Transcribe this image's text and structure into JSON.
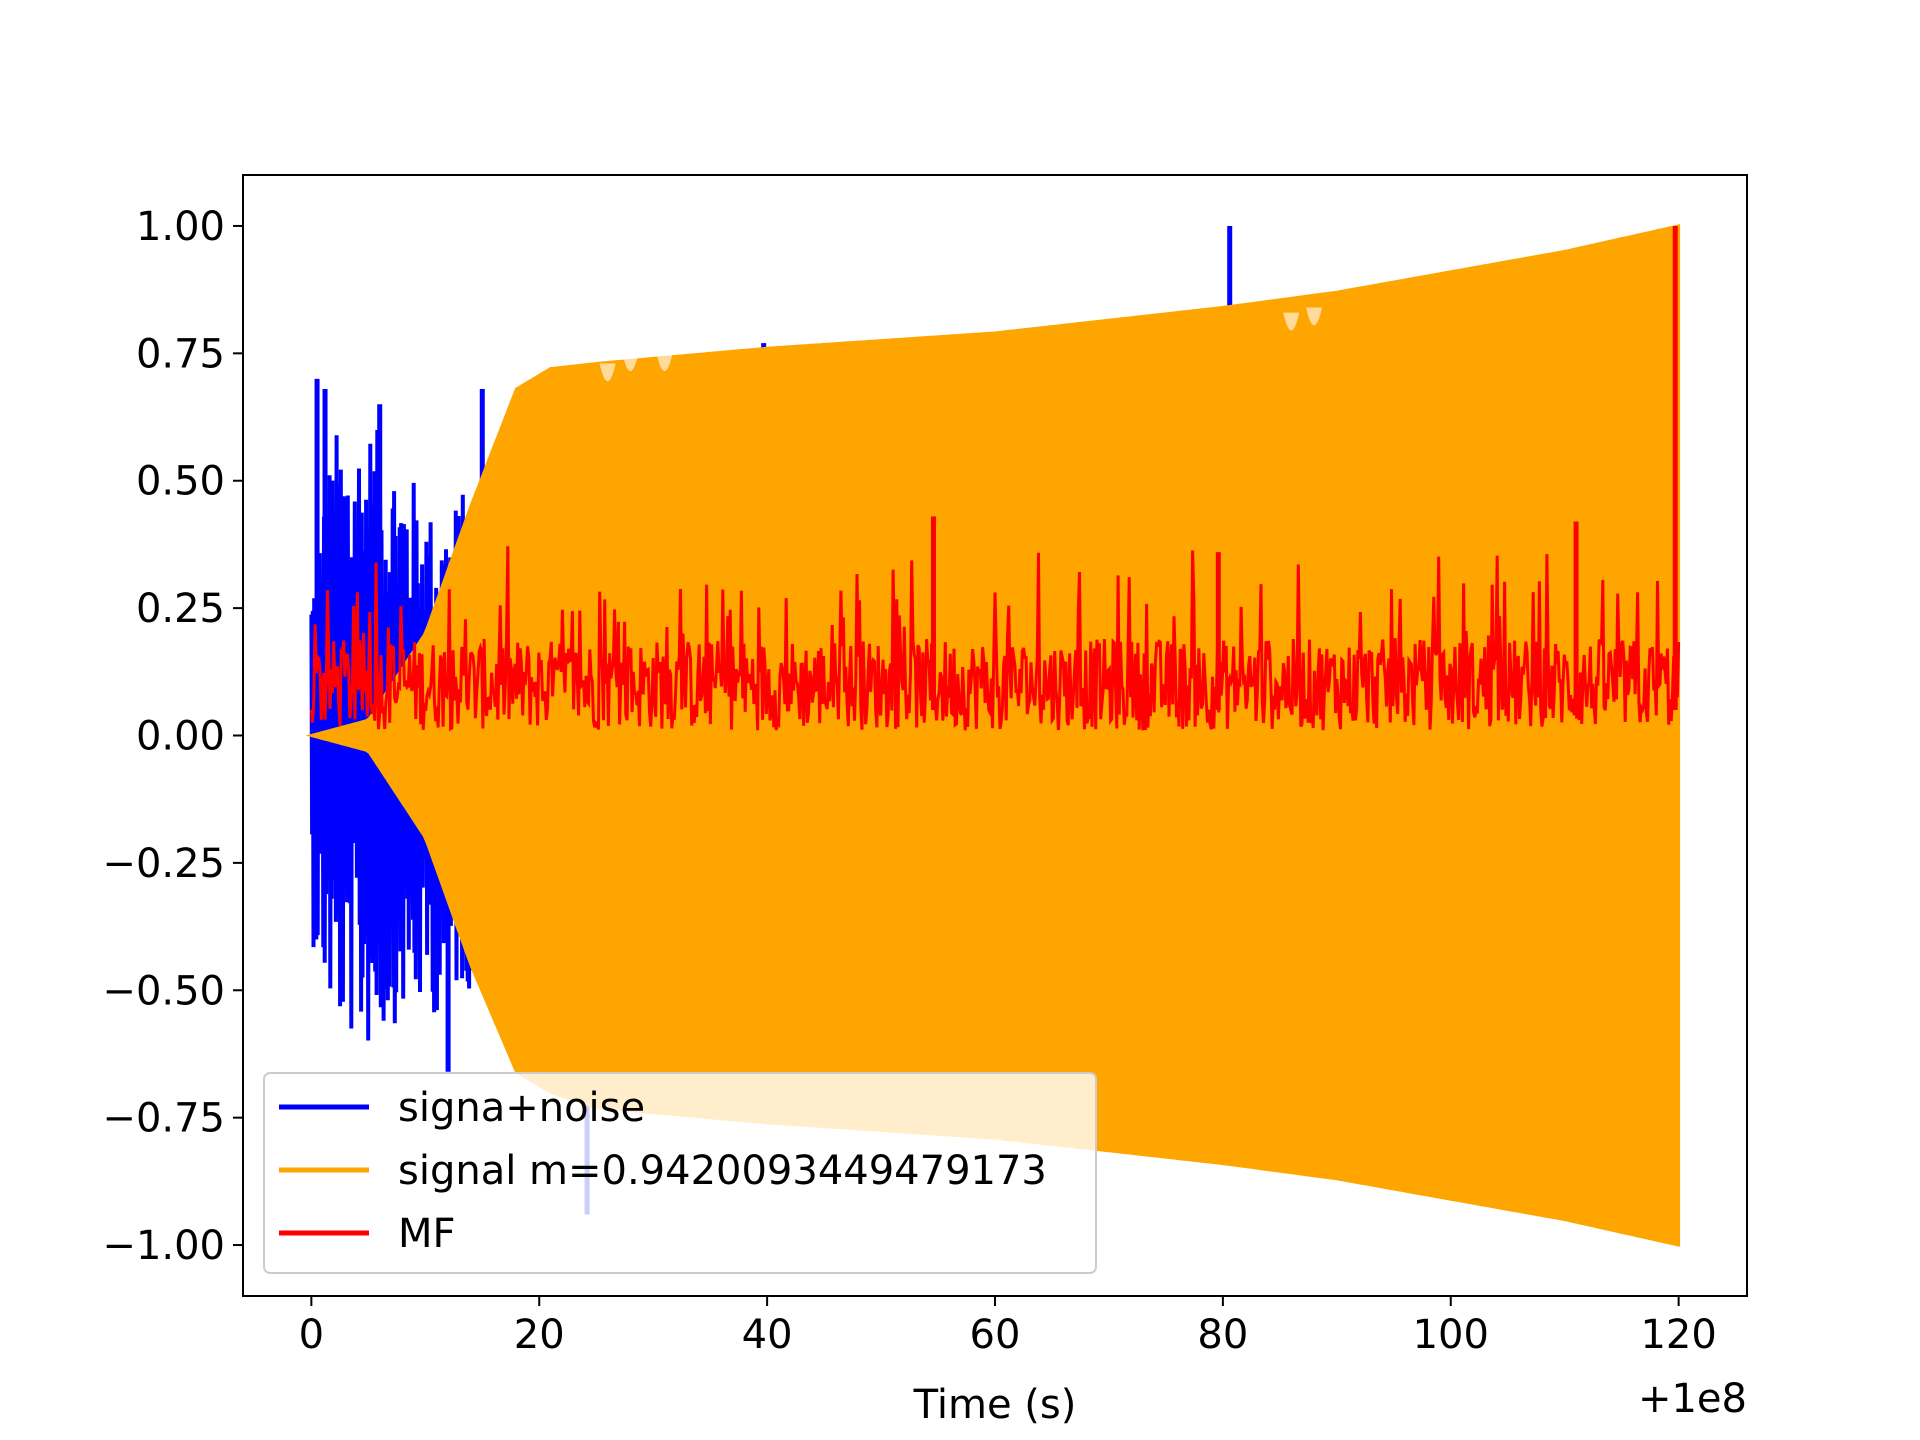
{
  "chart_data": {
    "type": "line",
    "xlabel": "Time (s)",
    "x_offset_label": "+1e8",
    "ylabel": "",
    "title": "",
    "xlim": [
      -6,
      126
    ],
    "ylim": [
      -1.1,
      1.1
    ],
    "x_ticks": [
      {
        "value": 0,
        "label": "0"
      },
      {
        "value": 20,
        "label": "20"
      },
      {
        "value": 40,
        "label": "40"
      },
      {
        "value": 60,
        "label": "60"
      },
      {
        "value": 80,
        "label": "80"
      },
      {
        "value": 100,
        "label": "100"
      },
      {
        "value": 120,
        "label": "120"
      }
    ],
    "y_ticks": [
      {
        "value": 1.0,
        "label": "1.00"
      },
      {
        "value": 0.75,
        "label": "0.75"
      },
      {
        "value": 0.5,
        "label": "0.50"
      },
      {
        "value": 0.25,
        "label": "0.25"
      },
      {
        "value": 0.0,
        "label": "0.00"
      },
      {
        "value": -0.25,
        "label": "−0.25"
      },
      {
        "value": -0.5,
        "label": "−0.50"
      },
      {
        "value": -0.75,
        "label": "−0.75"
      },
      {
        "value": -1.0,
        "label": "−1.00"
      }
    ],
    "grid": false,
    "legend_position": "lower-left",
    "series": [
      {
        "name": "signa+noise",
        "color": "#0000ff",
        "kind": "noisy-oscillation",
        "envelope_points": [
          [
            0,
            0.32
          ],
          [
            2,
            0.6
          ],
          [
            5,
            0.62
          ],
          [
            8,
            0.55
          ],
          [
            11,
            0.42
          ],
          [
            14,
            0.5
          ],
          [
            16,
            0.55
          ]
        ],
        "lower_envelope_points": [
          [
            0,
            -0.4
          ],
          [
            2,
            -0.58
          ],
          [
            5,
            -0.62
          ],
          [
            8,
            -0.55
          ],
          [
            11,
            -0.55
          ],
          [
            13,
            -0.5
          ]
        ],
        "spikes": [
          [
            0.5,
            0.7
          ],
          [
            1.2,
            0.68
          ],
          [
            6,
            0.65
          ],
          [
            15,
            0.68
          ],
          [
            39.7,
            0.77
          ],
          [
            80.6,
            1.0
          ],
          [
            24.2,
            -0.94
          ],
          [
            29,
            -0.65
          ],
          [
            12,
            -0.66
          ]
        ]
      },
      {
        "name": "signal m=0.9420093449479173",
        "color": "#ffa500",
        "kind": "chirp-envelope",
        "upper_envelope": [
          [
            0,
            0.0
          ],
          [
            5,
            0.03
          ],
          [
            10,
            0.2
          ],
          [
            14,
            0.45
          ],
          [
            18,
            0.68
          ],
          [
            21,
            0.72
          ],
          [
            25,
            0.73
          ],
          [
            40,
            0.76
          ],
          [
            60,
            0.79
          ],
          [
            80,
            0.84
          ],
          [
            90,
            0.87
          ],
          [
            100,
            0.91
          ],
          [
            110,
            0.95
          ],
          [
            120,
            1.0
          ]
        ],
        "lower_envelope": [
          [
            0,
            0.0
          ],
          [
            5,
            -0.03
          ],
          [
            10,
            -0.2
          ],
          [
            14,
            -0.45
          ],
          [
            18,
            -0.66
          ],
          [
            21,
            -0.7
          ],
          [
            25,
            -0.73
          ],
          [
            40,
            -0.76
          ],
          [
            60,
            -0.79
          ],
          [
            80,
            -0.84
          ],
          [
            90,
            -0.87
          ],
          [
            100,
            -0.91
          ],
          [
            110,
            -0.95
          ],
          [
            120,
            -1.0
          ]
        ],
        "dips": [
          [
            26,
            0.68
          ],
          [
            28,
            0.7
          ],
          [
            31,
            0.7
          ],
          [
            86,
            0.78
          ],
          [
            88,
            0.79
          ]
        ]
      },
      {
        "name": "MF",
        "color": "#ff0000",
        "kind": "noise-band",
        "baseline_low": 0.01,
        "baseline_high": 0.19,
        "peaks": [
          [
            54.6,
            0.43
          ],
          [
            79.6,
            0.36
          ],
          [
            111,
            0.42
          ],
          [
            119.7,
            1.0
          ]
        ]
      }
    ]
  }
}
